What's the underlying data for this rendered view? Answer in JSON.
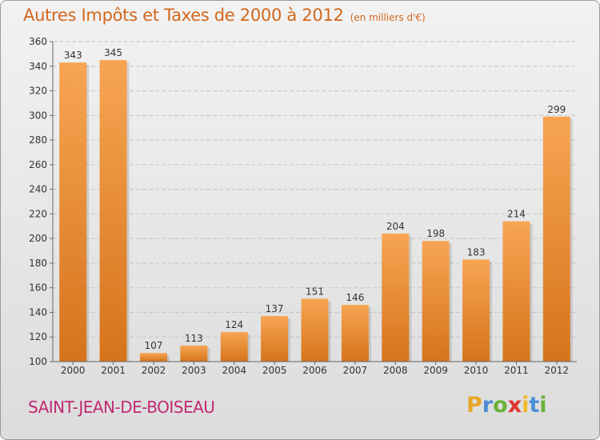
{
  "title": "Autres Impôts et Taxes de 2000 à 2012",
  "unit": "(en milliers d'€)",
  "city": "SAINT-JEAN-DE-BOISEAU",
  "brand": {
    "letters": [
      "P",
      "r",
      "o",
      "x",
      "i",
      "t",
      "i"
    ],
    "colors": [
      "#e8a628",
      "#4d8fd6",
      "#6ab03a",
      "#e0342b",
      "#f0b82a",
      "#4d8fd6",
      "#6ab03a"
    ]
  },
  "colors": {
    "title": "#d2681d",
    "city": "#c12a74",
    "bar_light": "#f7a553",
    "bar_dark": "#d6741b",
    "grid": "#c4c4c4"
  },
  "chart_data": {
    "type": "bar",
    "title": "Autres Impôts et Taxes de 2000 à 2012",
    "subtitle": "(en milliers d'€)",
    "categories": [
      "2000",
      "2001",
      "2002",
      "2003",
      "2004",
      "2005",
      "2006",
      "2007",
      "2008",
      "2009",
      "2010",
      "2011",
      "2012"
    ],
    "values": [
      343,
      345,
      107,
      113,
      124,
      137,
      151,
      146,
      204,
      198,
      183,
      214,
      299
    ],
    "ylim": [
      100,
      360
    ],
    "yticks": [
      100,
      120,
      140,
      160,
      180,
      200,
      220,
      240,
      260,
      280,
      300,
      320,
      340,
      360
    ],
    "xlabel": "",
    "ylabel": "",
    "grid": true,
    "data_labels": true
  }
}
